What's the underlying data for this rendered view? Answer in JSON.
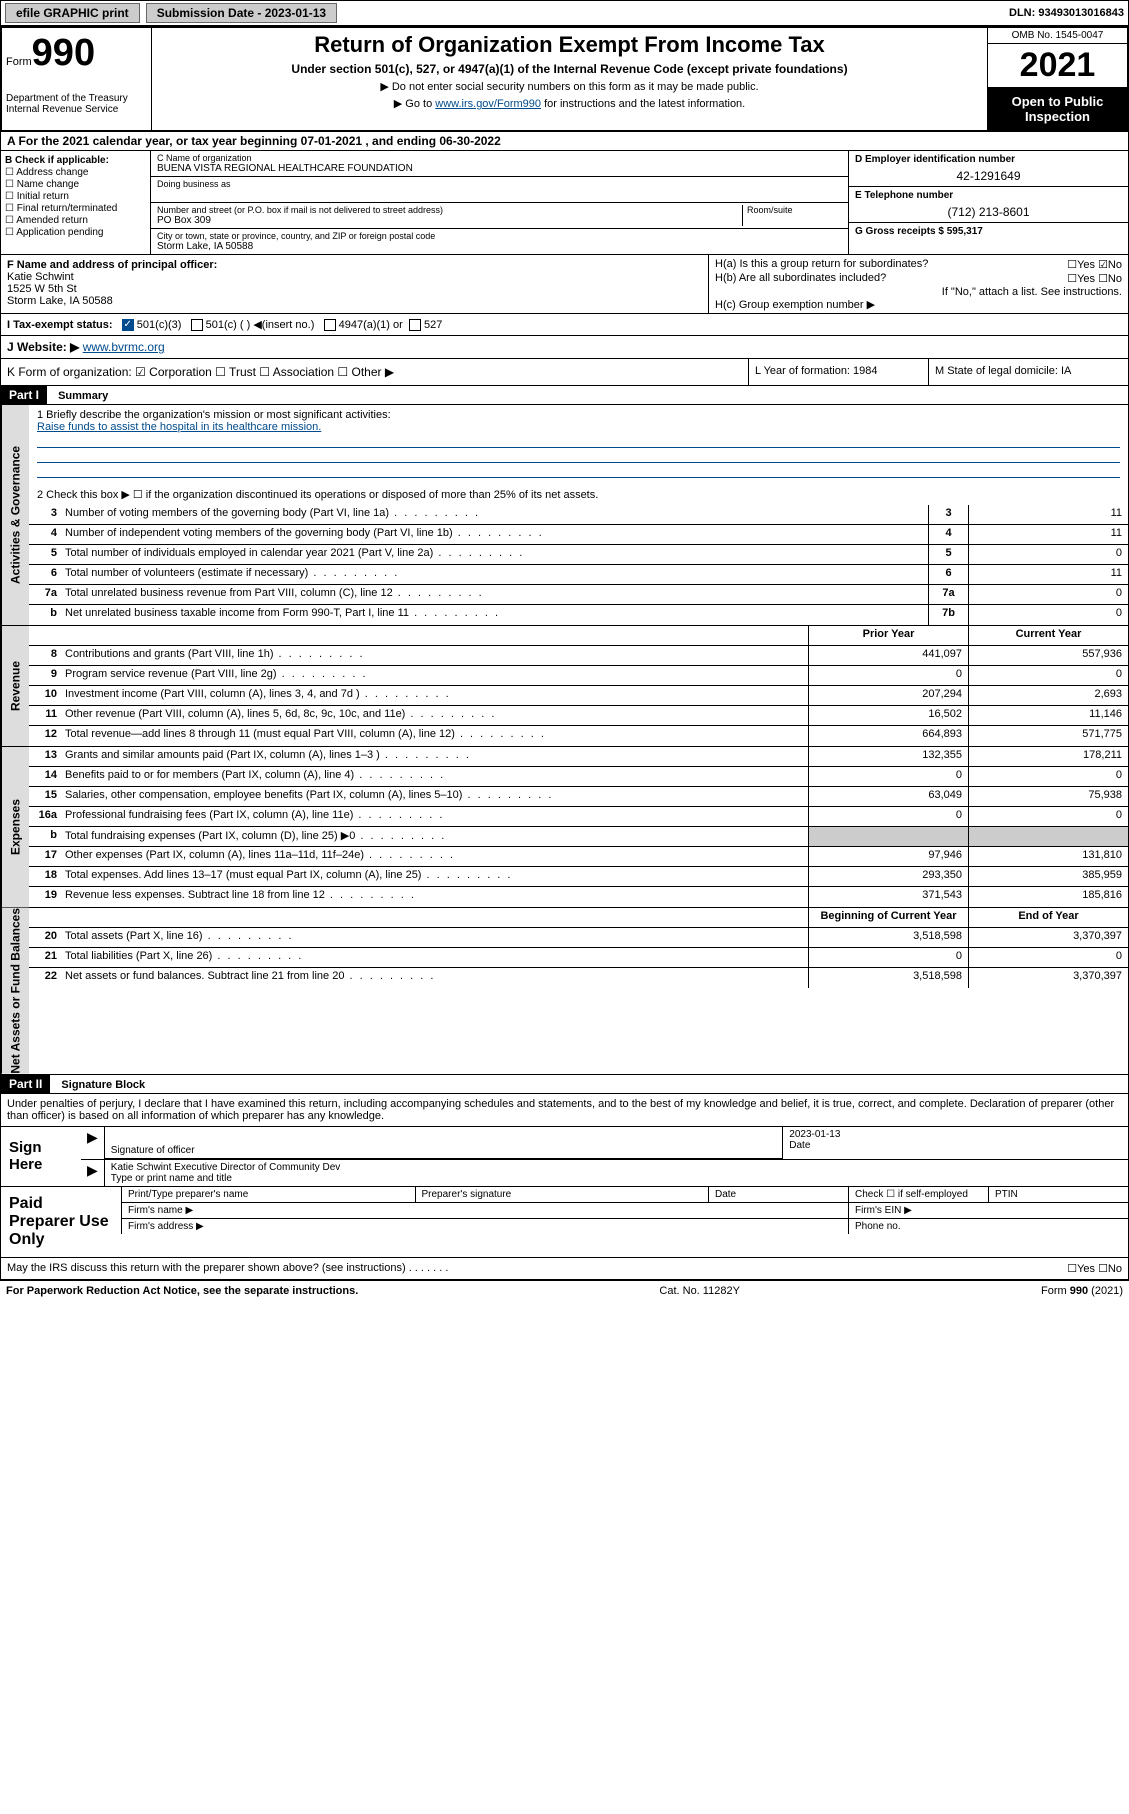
{
  "topbar": {
    "efile_label": "efile GRAPHIC print",
    "submission_label": "Submission Date - 2023-01-13",
    "dln_label": "DLN: 93493013016843"
  },
  "header": {
    "form_label": "Form",
    "form_number": "990",
    "title": "Return of Organization Exempt From Income Tax",
    "subtitle": "Under section 501(c), 527, or 4947(a)(1) of the Internal Revenue Code (except private foundations)",
    "instr1": "▶ Do not enter social security numbers on this form as it may be made public.",
    "instr2_pre": "▶ Go to ",
    "instr2_link": "www.irs.gov/Form990",
    "instr2_post": " for instructions and the latest information.",
    "dept": "Department of the Treasury Internal Revenue Service",
    "omb": "OMB No. 1545-0047",
    "year": "2021",
    "open": "Open to Public Inspection"
  },
  "row_a": "A For the 2021 calendar year, or tax year beginning 07-01-2021  , and ending 06-30-2022",
  "section_b": {
    "label": "B Check if applicable:",
    "items": [
      "Address change",
      "Name change",
      "Initial return",
      "Final return/terminated",
      "Amended return",
      "Application pending"
    ]
  },
  "section_c": {
    "name_label": "C Name of organization",
    "name": "BUENA VISTA REGIONAL HEALTHCARE FOUNDATION",
    "dba_label": "Doing business as",
    "addr_label": "Number and street (or P.O. box if mail is not delivered to street address)",
    "room_label": "Room/suite",
    "addr": "PO Box 309",
    "city_label": "City or town, state or province, country, and ZIP or foreign postal code",
    "city": "Storm Lake, IA  50588"
  },
  "section_d": {
    "label": "D Employer identification number",
    "value": "42-1291649"
  },
  "section_e": {
    "label": "E Telephone number",
    "value": "(712) 213-8601"
  },
  "section_g": {
    "label": "G Gross receipts $ 595,317"
  },
  "section_f": {
    "label": "F Name and address of principal officer:",
    "name": "Katie Schwint",
    "addr": "1525 W 5th St",
    "city": "Storm Lake, IA  50588"
  },
  "section_h": {
    "ha": "H(a)  Is this a group return for subordinates?",
    "ha_ans": "☐Yes ☑No",
    "hb": "H(b)  Are all subordinates included?",
    "hb_ans": "☐Yes ☐No",
    "hb_note": "If \"No,\" attach a list. See instructions.",
    "hc": "H(c)  Group exemption number ▶"
  },
  "section_i": {
    "label": "I   Tax-exempt status:",
    "opt1": "501(c)(3)",
    "opt2": "501(c) (  ) ◀(insert no.)",
    "opt3": "4947(a)(1) or",
    "opt4": "527"
  },
  "section_j": {
    "label": "J   Website: ▶ ",
    "link": "www.bvrmc.org"
  },
  "section_k": "K Form of organization:  ☑ Corporation ☐ Trust ☐ Association ☐ Other ▶",
  "section_l": "L Year of formation: 1984",
  "section_m": "M State of legal domicile: IA",
  "part1": {
    "hdr": "Part I",
    "title": "Summary",
    "q1_label": "1   Briefly describe the organization's mission or most significant activities:",
    "q1_mission": "Raise funds to assist the hospital in its healthcare mission.",
    "q2": "2   Check this box ▶ ☐  if the organization discontinued its operations or disposed of more than 25% of its net assets."
  },
  "governance_rows": [
    {
      "n": "3",
      "d": "Number of voting members of the governing body (Part VI, line 1a)",
      "box": "3",
      "v": "11"
    },
    {
      "n": "4",
      "d": "Number of independent voting members of the governing body (Part VI, line 1b)",
      "box": "4",
      "v": "11"
    },
    {
      "n": "5",
      "d": "Total number of individuals employed in calendar year 2021 (Part V, line 2a)",
      "box": "5",
      "v": "0"
    },
    {
      "n": "6",
      "d": "Total number of volunteers (estimate if necessary)",
      "box": "6",
      "v": "11"
    },
    {
      "n": "7a",
      "d": "Total unrelated business revenue from Part VIII, column (C), line 12",
      "box": "7a",
      "v": "0"
    },
    {
      "n": "b",
      "d": "Net unrelated business taxable income from Form 990-T, Part I, line 11",
      "box": "7b",
      "v": "0"
    }
  ],
  "col_hdrs": {
    "prior": "Prior Year",
    "current": "Current Year"
  },
  "revenue_rows": [
    {
      "n": "8",
      "d": "Contributions and grants (Part VIII, line 1h)",
      "p": "441,097",
      "c": "557,936"
    },
    {
      "n": "9",
      "d": "Program service revenue (Part VIII, line 2g)",
      "p": "0",
      "c": "0"
    },
    {
      "n": "10",
      "d": "Investment income (Part VIII, column (A), lines 3, 4, and 7d )",
      "p": "207,294",
      "c": "2,693"
    },
    {
      "n": "11",
      "d": "Other revenue (Part VIII, column (A), lines 5, 6d, 8c, 9c, 10c, and 11e)",
      "p": "16,502",
      "c": "11,146"
    },
    {
      "n": "12",
      "d": "Total revenue—add lines 8 through 11 (must equal Part VIII, column (A), line 12)",
      "p": "664,893",
      "c": "571,775"
    }
  ],
  "expense_rows": [
    {
      "n": "13",
      "d": "Grants and similar amounts paid (Part IX, column (A), lines 1–3 )",
      "p": "132,355",
      "c": "178,211"
    },
    {
      "n": "14",
      "d": "Benefits paid to or for members (Part IX, column (A), line 4)",
      "p": "0",
      "c": "0"
    },
    {
      "n": "15",
      "d": "Salaries, other compensation, employee benefits (Part IX, column (A), lines 5–10)",
      "p": "63,049",
      "c": "75,938"
    },
    {
      "n": "16a",
      "d": "Professional fundraising fees (Part IX, column (A), line 11e)",
      "p": "0",
      "c": "0"
    },
    {
      "n": "b",
      "d": "Total fundraising expenses (Part IX, column (D), line 25) ▶0",
      "p": "",
      "c": "",
      "grey": true
    },
    {
      "n": "17",
      "d": "Other expenses (Part IX, column (A), lines 11a–11d, 11f–24e)",
      "p": "97,946",
      "c": "131,810"
    },
    {
      "n": "18",
      "d": "Total expenses. Add lines 13–17 (must equal Part IX, column (A), line 25)",
      "p": "293,350",
      "c": "385,959"
    },
    {
      "n": "19",
      "d": "Revenue less expenses. Subtract line 18 from line 12",
      "p": "371,543",
      "c": "185,816"
    }
  ],
  "netassets_hdrs": {
    "begin": "Beginning of Current Year",
    "end": "End of Year"
  },
  "netassets_rows": [
    {
      "n": "20",
      "d": "Total assets (Part X, line 16)",
      "p": "3,518,598",
      "c": "3,370,397"
    },
    {
      "n": "21",
      "d": "Total liabilities (Part X, line 26)",
      "p": "0",
      "c": "0"
    },
    {
      "n": "22",
      "d": "Net assets or fund balances. Subtract line 21 from line 20",
      "p": "3,518,598",
      "c": "3,370,397"
    }
  ],
  "vtabs": {
    "gov": "Activities & Governance",
    "rev": "Revenue",
    "exp": "Expenses",
    "net": "Net Assets or Fund Balances"
  },
  "part2": {
    "hdr": "Part II",
    "title": "Signature Block"
  },
  "sig_decl": "Under penalties of perjury, I declare that I have examined this return, including accompanying schedules and statements, and to the best of my knowledge and belief, it is true, correct, and complete. Declaration of preparer (other than officer) is based on all information of which preparer has any knowledge.",
  "sign_here": {
    "label": "Sign Here",
    "sig_label": "Signature of officer",
    "date_label": "Date",
    "date": "2023-01-13",
    "name": "Katie Schwint  Executive Director of Community Dev",
    "name_label": "Type or print name and title"
  },
  "paid": {
    "label": "Paid Preparer Use Only",
    "h1": "Print/Type preparer's name",
    "h2": "Preparer's signature",
    "h3": "Date",
    "h4": "Check ☐ if self-employed",
    "h5": "PTIN",
    "firm_name": "Firm's name  ▶",
    "firm_ein": "Firm's EIN ▶",
    "firm_addr": "Firm's address ▶",
    "phone": "Phone no."
  },
  "discuss": "May the IRS discuss this return with the preparer shown above? (see instructions)",
  "discuss_ans": "☐Yes  ☐No",
  "footer": {
    "left": "For Paperwork Reduction Act Notice, see the separate instructions.",
    "mid": "Cat. No. 11282Y",
    "right": "Form 990 (2021)"
  }
}
